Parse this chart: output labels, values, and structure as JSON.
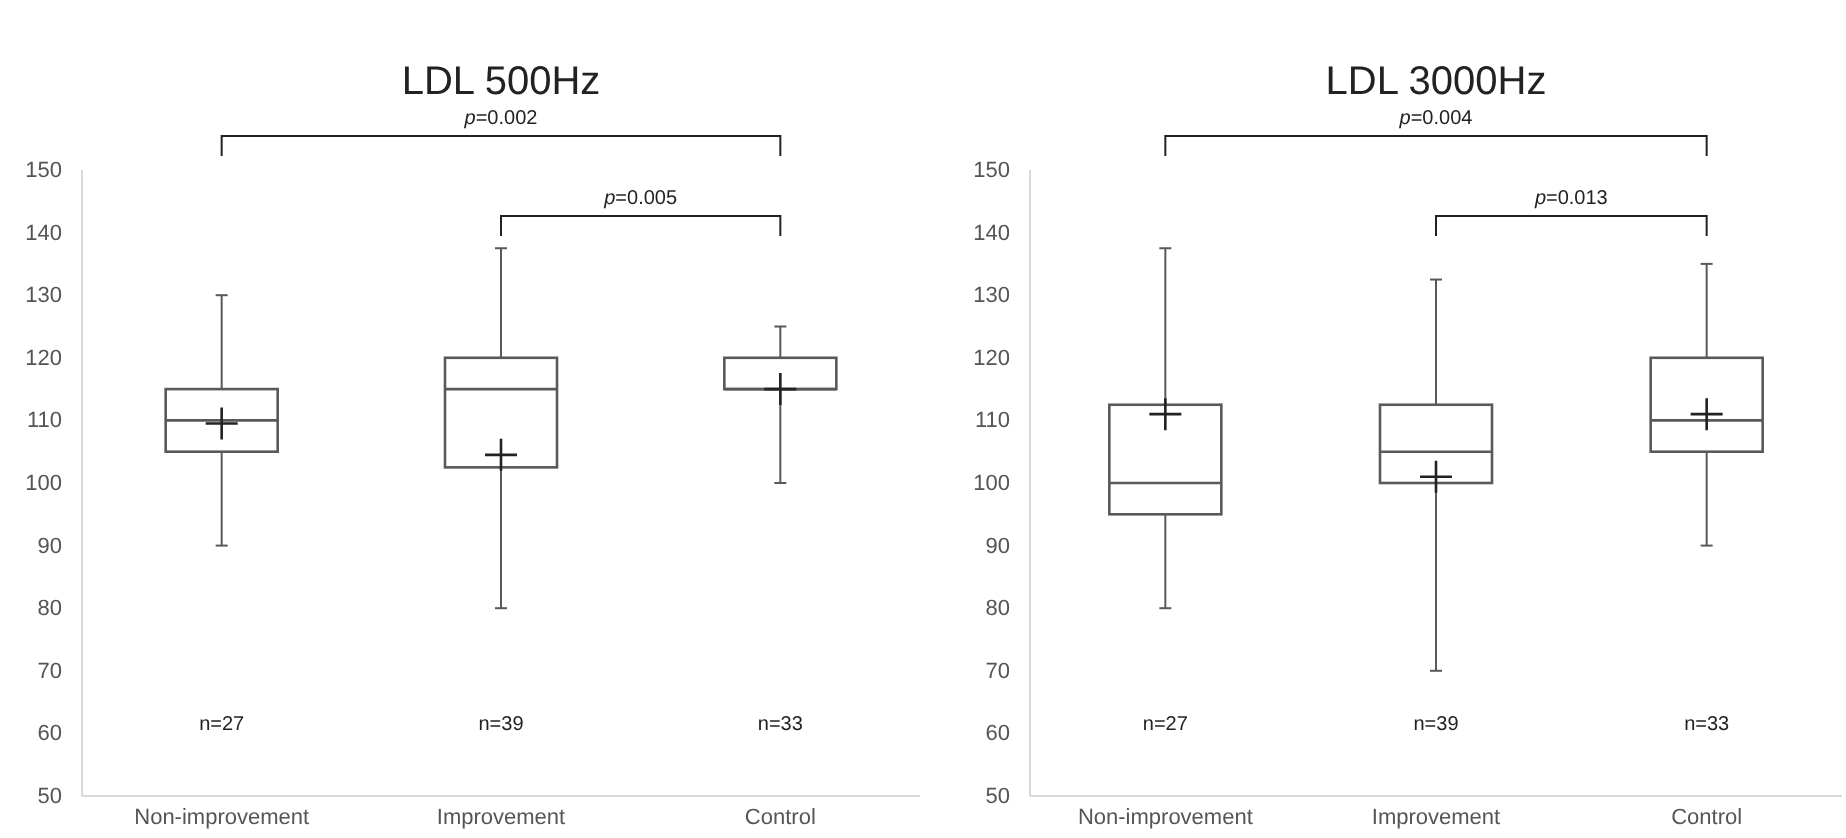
{
  "chart_data": [
    {
      "type": "box",
      "title": "LDL 500Hz",
      "categories": [
        "Non-improvement",
        "Improvement",
        "Control"
      ],
      "ylim": [
        50,
        150
      ],
      "yticks": [
        50,
        60,
        70,
        80,
        90,
        100,
        110,
        120,
        130,
        140,
        150
      ],
      "grid": false,
      "color": "#595959",
      "boxes": [
        {
          "low": 90,
          "q1": 105,
          "median": 110,
          "q3": 115,
          "high": 130,
          "mean": 109.5
        },
        {
          "low": 80,
          "q1": 102.5,
          "median": 115,
          "q3": 120,
          "high": 137.5,
          "mean": 104.5
        },
        {
          "low": 100,
          "q1": 115,
          "median": 115,
          "q3": 120,
          "high": 125,
          "mean": 115
        }
      ],
      "annotations": [
        "p=0.002",
        "p=0.005",
        "n=27",
        "n=39",
        "n=33"
      ]
    },
    {
      "type": "box",
      "title": "LDL 3000Hz",
      "categories": [
        "Non-improvement",
        "Improvement",
        "Control"
      ],
      "ylim": [
        50,
        150
      ],
      "yticks": [
        50,
        60,
        70,
        80,
        90,
        100,
        110,
        120,
        130,
        140,
        150
      ],
      "grid": false,
      "color": "#595959",
      "boxes": [
        {
          "low": 80,
          "q1": 95,
          "median": 100,
          "q3": 112.5,
          "high": 137.5,
          "mean": 111
        },
        {
          "low": 70,
          "q1": 100,
          "median": 105,
          "q3": 112.5,
          "high": 132.5,
          "mean": 101
        },
        {
          "low": 90,
          "q1": 105,
          "median": 110,
          "q3": 120,
          "high": 135,
          "mean": 111
        }
      ],
      "annotations": [
        "p=0.004",
        "p=0.013",
        "n=27",
        "n=39",
        "n=33"
      ]
    }
  ]
}
